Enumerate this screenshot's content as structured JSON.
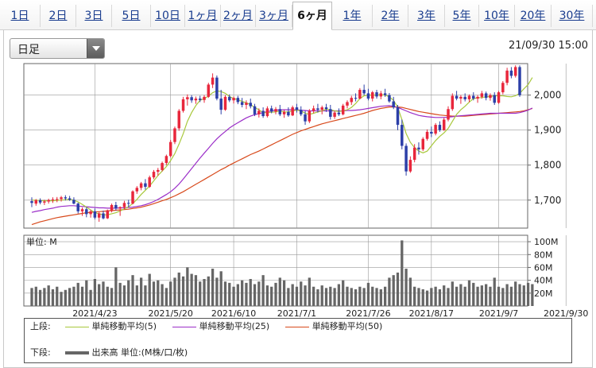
{
  "tabs": [
    "1日",
    "2日",
    "3日",
    "5日",
    "10日",
    "1ヶ月",
    "2ヶ月",
    "3ヶ月",
    "6ヶ月",
    "1年",
    "2年",
    "3年",
    "5年",
    "10年",
    "20年",
    "30年"
  ],
  "active_tab": "6ヶ月",
  "period_select": {
    "value": "日足"
  },
  "timestamp": "21/09/30 15:00",
  "colors": {
    "up": "#e8273c",
    "down": "#2c3fa8",
    "doji": "#111111",
    "ma5": "#a8c83c",
    "ma25": "#9b2ec8",
    "ma50": "#d84a1c",
    "volume": "#666666",
    "grid": "#999999"
  },
  "legend": {
    "upper_label": "上段:",
    "lower_label": "下段:",
    "ma5_label": "単純移動平均(5)",
    "ma25_label": "単純移動平均(25)",
    "ma50_label": "単純移動平均(50)",
    "volume_label": "出来高 単位:(M株/口/枚)"
  },
  "chart_data": {
    "type": "candlestick",
    "title": "",
    "price_axis": {
      "ylim": [
        1620,
        2090
      ],
      "ticks": [
        1700,
        1800,
        1900,
        2000
      ],
      "tick_labels": [
        "1,700",
        "1,800",
        "1,900",
        "2,000"
      ]
    },
    "volume_axis": {
      "unit_label": "単位: M",
      "ylim": [
        0,
        110
      ],
      "ticks": [
        20,
        40,
        60,
        80,
        100
      ],
      "tick_labels": [
        "20M",
        "40M",
        "60M",
        "80M",
        "100M"
      ]
    },
    "x_labels": [
      "2021/4/23",
      "2021/5/20",
      "2021/6/10",
      "2021/7/1",
      "2021/7/26",
      "2021/8/17",
      "2021/9/7",
      "2021/9/30"
    ],
    "x_label_indices": [
      15,
      33,
      48,
      63,
      80,
      95,
      111,
      127
    ],
    "grid": true,
    "candles": [
      {
        "o": 1697,
        "h": 1708,
        "l": 1680,
        "c": 1692
      },
      {
        "o": 1690,
        "h": 1703,
        "l": 1684,
        "c": 1700
      },
      {
        "o": 1700,
        "h": 1705,
        "l": 1688,
        "c": 1693
      },
      {
        "o": 1693,
        "h": 1701,
        "l": 1686,
        "c": 1696
      },
      {
        "o": 1696,
        "h": 1704,
        "l": 1690,
        "c": 1700
      },
      {
        "o": 1700,
        "h": 1708,
        "l": 1692,
        "c": 1702
      },
      {
        "o": 1702,
        "h": 1709,
        "l": 1694,
        "c": 1703
      },
      {
        "o": 1703,
        "h": 1712,
        "l": 1696,
        "c": 1708
      },
      {
        "o": 1708,
        "h": 1714,
        "l": 1699,
        "c": 1705
      },
      {
        "o": 1705,
        "h": 1712,
        "l": 1698,
        "c": 1701
      },
      {
        "o": 1701,
        "h": 1708,
        "l": 1688,
        "c": 1690
      },
      {
        "o": 1690,
        "h": 1693,
        "l": 1662,
        "c": 1668
      },
      {
        "o": 1668,
        "h": 1679,
        "l": 1655,
        "c": 1674
      },
      {
        "o": 1674,
        "h": 1680,
        "l": 1651,
        "c": 1660
      },
      {
        "o": 1660,
        "h": 1672,
        "l": 1650,
        "c": 1668
      },
      {
        "o": 1668,
        "h": 1676,
        "l": 1645,
        "c": 1650
      },
      {
        "o": 1650,
        "h": 1666,
        "l": 1638,
        "c": 1662
      },
      {
        "o": 1662,
        "h": 1670,
        "l": 1645,
        "c": 1648
      },
      {
        "o": 1648,
        "h": 1673,
        "l": 1646,
        "c": 1671
      },
      {
        "o": 1671,
        "h": 1690,
        "l": 1665,
        "c": 1686
      },
      {
        "o": 1686,
        "h": 1695,
        "l": 1670,
        "c": 1676
      },
      {
        "o": 1676,
        "h": 1682,
        "l": 1655,
        "c": 1680
      },
      {
        "o": 1680,
        "h": 1698,
        "l": 1674,
        "c": 1692
      },
      {
        "o": 1692,
        "h": 1701,
        "l": 1680,
        "c": 1690
      },
      {
        "o": 1690,
        "h": 1728,
        "l": 1688,
        "c": 1725
      },
      {
        "o": 1725,
        "h": 1740,
        "l": 1718,
        "c": 1735
      },
      {
        "o": 1735,
        "h": 1752,
        "l": 1728,
        "c": 1748
      },
      {
        "o": 1748,
        "h": 1760,
        "l": 1730,
        "c": 1738
      },
      {
        "o": 1738,
        "h": 1770,
        "l": 1735,
        "c": 1765
      },
      {
        "o": 1765,
        "h": 1786,
        "l": 1760,
        "c": 1781
      },
      {
        "o": 1781,
        "h": 1792,
        "l": 1770,
        "c": 1786
      },
      {
        "o": 1786,
        "h": 1810,
        "l": 1782,
        "c": 1806
      },
      {
        "o": 1806,
        "h": 1830,
        "l": 1800,
        "c": 1826
      },
      {
        "o": 1826,
        "h": 1872,
        "l": 1822,
        "c": 1866
      },
      {
        "o": 1866,
        "h": 1910,
        "l": 1860,
        "c": 1905
      },
      {
        "o": 1905,
        "h": 1960,
        "l": 1898,
        "c": 1955
      },
      {
        "o": 1955,
        "h": 1995,
        "l": 1950,
        "c": 1988
      },
      {
        "o": 1988,
        "h": 2002,
        "l": 1970,
        "c": 1994
      },
      {
        "o": 1994,
        "h": 2000,
        "l": 1978,
        "c": 1985
      },
      {
        "o": 1985,
        "h": 1996,
        "l": 1975,
        "c": 1990
      },
      {
        "o": 1990,
        "h": 1998,
        "l": 1980,
        "c": 1986
      },
      {
        "o": 1986,
        "h": 2000,
        "l": 1978,
        "c": 1995
      },
      {
        "o": 1995,
        "h": 2035,
        "l": 1992,
        "c": 2030
      },
      {
        "o": 2030,
        "h": 2062,
        "l": 2020,
        "c": 2050
      },
      {
        "o": 2050,
        "h": 2056,
        "l": 1985,
        "c": 1990
      },
      {
        "o": 1990,
        "h": 2015,
        "l": 1945,
        "c": 1958
      },
      {
        "o": 1958,
        "h": 2000,
        "l": 1955,
        "c": 1995
      },
      {
        "o": 1995,
        "h": 2002,
        "l": 1980,
        "c": 1985
      },
      {
        "o": 1985,
        "h": 1996,
        "l": 1976,
        "c": 1992
      },
      {
        "o": 1992,
        "h": 1998,
        "l": 1974,
        "c": 1980
      },
      {
        "o": 1980,
        "h": 1992,
        "l": 1965,
        "c": 1972
      },
      {
        "o": 1972,
        "h": 1985,
        "l": 1960,
        "c": 1978
      },
      {
        "o": 1978,
        "h": 1990,
        "l": 1962,
        "c": 1968
      },
      {
        "o": 1968,
        "h": 1975,
        "l": 1940,
        "c": 1945
      },
      {
        "o": 1945,
        "h": 1962,
        "l": 1936,
        "c": 1955
      },
      {
        "o": 1955,
        "h": 1965,
        "l": 1935,
        "c": 1940
      },
      {
        "o": 1940,
        "h": 1968,
        "l": 1936,
        "c": 1962
      },
      {
        "o": 1962,
        "h": 1970,
        "l": 1948,
        "c": 1953
      },
      {
        "o": 1953,
        "h": 1966,
        "l": 1945,
        "c": 1960
      },
      {
        "o": 1960,
        "h": 1972,
        "l": 1940,
        "c": 1945
      },
      {
        "o": 1945,
        "h": 1958,
        "l": 1935,
        "c": 1952
      },
      {
        "o": 1952,
        "h": 1965,
        "l": 1938,
        "c": 1942
      },
      {
        "o": 1942,
        "h": 1970,
        "l": 1940,
        "c": 1965
      },
      {
        "o": 1965,
        "h": 1975,
        "l": 1950,
        "c": 1958
      },
      {
        "o": 1958,
        "h": 1968,
        "l": 1940,
        "c": 1945
      },
      {
        "o": 1945,
        "h": 1955,
        "l": 1915,
        "c": 1925
      },
      {
        "o": 1925,
        "h": 1960,
        "l": 1920,
        "c": 1955
      },
      {
        "o": 1955,
        "h": 1970,
        "l": 1948,
        "c": 1962
      },
      {
        "o": 1962,
        "h": 1975,
        "l": 1950,
        "c": 1958
      },
      {
        "o": 1958,
        "h": 1970,
        "l": 1945,
        "c": 1965
      },
      {
        "o": 1965,
        "h": 1975,
        "l": 1952,
        "c": 1960
      },
      {
        "o": 1960,
        "h": 1972,
        "l": 1930,
        "c": 1938
      },
      {
        "o": 1938,
        "h": 1955,
        "l": 1932,
        "c": 1950
      },
      {
        "o": 1950,
        "h": 1962,
        "l": 1940,
        "c": 1945
      },
      {
        "o": 1945,
        "h": 1975,
        "l": 1942,
        "c": 1970
      },
      {
        "o": 1970,
        "h": 1985,
        "l": 1962,
        "c": 1980
      },
      {
        "o": 1980,
        "h": 1998,
        "l": 1972,
        "c": 1992
      },
      {
        "o": 1992,
        "h": 2005,
        "l": 1982,
        "c": 1990
      },
      {
        "o": 1990,
        "h": 2020,
        "l": 1988,
        "c": 2015
      },
      {
        "o": 2015,
        "h": 2030,
        "l": 2000,
        "c": 2005
      },
      {
        "o": 2005,
        "h": 2018,
        "l": 1985,
        "c": 1990
      },
      {
        "o": 1990,
        "h": 2012,
        "l": 1982,
        "c": 2008
      },
      {
        "o": 2008,
        "h": 2015,
        "l": 1990,
        "c": 1996
      },
      {
        "o": 1996,
        "h": 2012,
        "l": 1988,
        "c": 2005
      },
      {
        "o": 2005,
        "h": 2018,
        "l": 1995,
        "c": 2000
      },
      {
        "o": 2000,
        "h": 2006,
        "l": 1978,
        "c": 1982
      },
      {
        "o": 1982,
        "h": 1995,
        "l": 1960,
        "c": 1965
      },
      {
        "o": 1965,
        "h": 1972,
        "l": 1900,
        "c": 1915
      },
      {
        "o": 1915,
        "h": 1930,
        "l": 1845,
        "c": 1855
      },
      {
        "o": 1855,
        "h": 1862,
        "l": 1770,
        "c": 1782
      },
      {
        "o": 1782,
        "h": 1825,
        "l": 1778,
        "c": 1815
      },
      {
        "o": 1815,
        "h": 1860,
        "l": 1808,
        "c": 1850
      },
      {
        "o": 1850,
        "h": 1865,
        "l": 1830,
        "c": 1845
      },
      {
        "o": 1845,
        "h": 1880,
        "l": 1840,
        "c": 1875
      },
      {
        "o": 1875,
        "h": 1902,
        "l": 1870,
        "c": 1895
      },
      {
        "o": 1895,
        "h": 1910,
        "l": 1880,
        "c": 1890
      },
      {
        "o": 1890,
        "h": 1920,
        "l": 1885,
        "c": 1915
      },
      {
        "o": 1915,
        "h": 1925,
        "l": 1895,
        "c": 1900
      },
      {
        "o": 1900,
        "h": 1935,
        "l": 1898,
        "c": 1930
      },
      {
        "o": 1930,
        "h": 1968,
        "l": 1925,
        "c": 1960
      },
      {
        "o": 1960,
        "h": 2005,
        "l": 1955,
        "c": 1998
      },
      {
        "o": 1998,
        "h": 2012,
        "l": 1985,
        "c": 1990
      },
      {
        "o": 1990,
        "h": 2000,
        "l": 1975,
        "c": 1995
      },
      {
        "o": 1995,
        "h": 2005,
        "l": 1982,
        "c": 1988
      },
      {
        "o": 1988,
        "h": 2002,
        "l": 1980,
        "c": 1998
      },
      {
        "o": 1998,
        "h": 2008,
        "l": 1985,
        "c": 1990
      },
      {
        "o": 1990,
        "h": 2000,
        "l": 1978,
        "c": 1995
      },
      {
        "o": 1995,
        "h": 2012,
        "l": 1990,
        "c": 2005
      },
      {
        "o": 2005,
        "h": 2010,
        "l": 1985,
        "c": 1992
      },
      {
        "o": 1992,
        "h": 2005,
        "l": 1984,
        "c": 2000
      },
      {
        "o": 2000,
        "h": 2008,
        "l": 1972,
        "c": 1978
      },
      {
        "o": 1978,
        "h": 2012,
        "l": 1975,
        "c": 2008
      },
      {
        "o": 2008,
        "h": 2040,
        "l": 2002,
        "c": 2035
      },
      {
        "o": 2035,
        "h": 2078,
        "l": 2028,
        "c": 2070
      },
      {
        "o": 2070,
        "h": 2080,
        "l": 2048,
        "c": 2055
      },
      {
        "o": 2055,
        "h": 2085,
        "l": 2050,
        "c": 2080
      },
      {
        "o": 2080,
        "h": 2085,
        "l": 1995,
        "c": 2000
      }
    ],
    "ma5": [
      1700,
      1700,
      1699,
      1698,
      1698,
      1698,
      1699,
      1700,
      1701,
      1702,
      1700,
      1695,
      1688,
      1680,
      1672,
      1664,
      1661,
      1658,
      1658,
      1661,
      1664,
      1669,
      1675,
      1681,
      1690,
      1702,
      1716,
      1728,
      1740,
      1755,
      1770,
      1783,
      1796,
      1813,
      1833,
      1860,
      1890,
      1925,
      1950,
      1970,
      1985,
      1990,
      1997,
      2007,
      2012,
      2010,
      2005,
      1996,
      1990,
      1987,
      1982,
      1978,
      1973,
      1965,
      1958,
      1950,
      1950,
      1951,
      1952,
      1955,
      1952,
      1952,
      1955,
      1957,
      1955,
      1948,
      1945,
      1948,
      1952,
      1955,
      1960,
      1958,
      1955,
      1953,
      1955,
      1958,
      1965,
      1976,
      1990,
      1998,
      2000,
      2000,
      2000,
      2001,
      2000,
      1995,
      1985,
      1965,
      1930,
      1890,
      1865,
      1850,
      1840,
      1835,
      1840,
      1855,
      1870,
      1882,
      1892,
      1905,
      1925,
      1945,
      1958,
      1968,
      1980,
      1990,
      1992,
      1993,
      1995,
      1996,
      1998,
      1998,
      1998,
      1996,
      1995,
      1998,
      2005,
      2018,
      2030,
      2050
    ],
    "ma25": [
      1665,
      1668,
      1670,
      1673,
      1675,
      1677,
      1680,
      1682,
      1683,
      1684,
      1684,
      1683,
      1682,
      1681,
      1680,
      1679,
      1678,
      1678,
      1677,
      1677,
      1677,
      1678,
      1678,
      1679,
      1680,
      1682,
      1684,
      1687,
      1691,
      1696,
      1702,
      1709,
      1716,
      1724,
      1734,
      1746,
      1760,
      1775,
      1790,
      1805,
      1820,
      1834,
      1848,
      1862,
      1875,
      1886,
      1896,
      1906,
      1914,
      1921,
      1928,
      1935,
      1940,
      1944,
      1947,
      1950,
      1953,
      1955,
      1957,
      1958,
      1958,
      1958,
      1958,
      1958,
      1957,
      1956,
      1955,
      1955,
      1955,
      1955,
      1955,
      1955,
      1955,
      1955,
      1955,
      1956,
      1956,
      1957,
      1958,
      1960,
      1962,
      1964,
      1966,
      1968,
      1969,
      1970,
      1968,
      1965,
      1960,
      1955,
      1950,
      1946,
      1942,
      1940,
      1938,
      1937,
      1936,
      1936,
      1936,
      1937,
      1938,
      1940,
      1941,
      1942,
      1943,
      1944,
      1945,
      1946,
      1947,
      1948,
      1948,
      1948,
      1948,
      1948,
      1948,
      1948,
      1950,
      1953,
      1957,
      1963
    ],
    "ma50": [
      1630,
      1634,
      1638,
      1641,
      1644,
      1647,
      1650,
      1652,
      1654,
      1656,
      1658,
      1660,
      1662,
      1664,
      1665,
      1666,
      1667,
      1668,
      1669,
      1670,
      1671,
      1672,
      1673,
      1674,
      1676,
      1678,
      1680,
      1683,
      1686,
      1690,
      1694,
      1698,
      1702,
      1707,
      1712,
      1718,
      1724,
      1731,
      1738,
      1745,
      1752,
      1759,
      1766,
      1773,
      1780,
      1787,
      1793,
      1800,
      1806,
      1812,
      1818,
      1824,
      1830,
      1835,
      1840,
      1846,
      1852,
      1858,
      1864,
      1870,
      1876,
      1882,
      1888,
      1893,
      1898,
      1902,
      1906,
      1910,
      1914,
      1918,
      1921,
      1924,
      1927,
      1930,
      1933,
      1936,
      1939,
      1942,
      1945,
      1948,
      1952,
      1956,
      1959,
      1962,
      1964,
      1966,
      1966,
      1966,
      1965,
      1962,
      1959,
      1956,
      1953,
      1951,
      1949,
      1947,
      1945,
      1943,
      1942,
      1941,
      1940,
      1940,
      1940,
      1940,
      1941,
      1942,
      1943,
      1944,
      1945,
      1946,
      1947,
      1948,
      1949,
      1950,
      1951,
      1952,
      1953,
      1955,
      1958,
      1962
    ],
    "volume": [
      28,
      30,
      25,
      28,
      32,
      26,
      30,
      22,
      25,
      28,
      30,
      36,
      30,
      40,
      25,
      42,
      34,
      38,
      30,
      28,
      60,
      36,
      32,
      40,
      48,
      32,
      44,
      32,
      50,
      38,
      40,
      34,
      28,
      38,
      44,
      52,
      46,
      60,
      50,
      48,
      38,
      42,
      46,
      58,
      44,
      54,
      38,
      36,
      30,
      34,
      40,
      36,
      42,
      34,
      38,
      48,
      32,
      30,
      36,
      44,
      40,
      28,
      34,
      30,
      38,
      32,
      44,
      30,
      26,
      32,
      28,
      30,
      28,
      34,
      40,
      30,
      28,
      26,
      30,
      28,
      36,
      30,
      28,
      26,
      30,
      44,
      48,
      52,
      102,
      58,
      44,
      30,
      28,
      26,
      24,
      28,
      30,
      26,
      32,
      28,
      38,
      30,
      34,
      30,
      40,
      36,
      30,
      32,
      34,
      30,
      44,
      30,
      28,
      34,
      30,
      38,
      34,
      32,
      36,
      34
    ]
  }
}
